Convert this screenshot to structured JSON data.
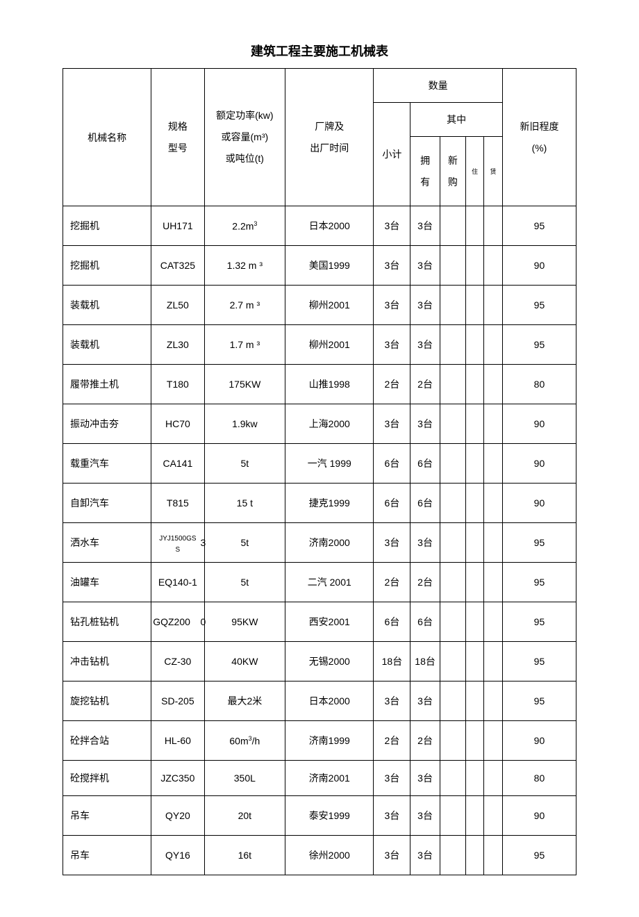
{
  "title": "建筑工程主要施工机械表",
  "headers": {
    "name": "机械名称",
    "model_line1": "规格",
    "model_line2": "型号",
    "capacity_line1": "额定功率(kw)",
    "capacity_line2": "或容量(m³)",
    "capacity_line3": "或吨位(t)",
    "brand_line1": "厂牌及",
    "brand_line2": "出厂时间",
    "quantity": "数量",
    "subtotal": "小计",
    "among": "其中",
    "own_line1": "拥",
    "own_line2": "有",
    "new_line1": "新",
    "new_line2": "购",
    "resi": "住",
    "rent": "赁",
    "condition_line1": "新旧程度",
    "condition_line2": "(%)"
  },
  "rows": [
    {
      "name": "挖掘机",
      "model": "UH171",
      "capacity": "2.2m",
      "cap_sup": "3",
      "brand": "日本2000",
      "subtotal": "3台",
      "own": "3台",
      "new": "",
      "resi": "",
      "rent": "",
      "cond": "95"
    },
    {
      "name": "挖掘机",
      "model": "CAT325",
      "capacity": "1.32 m ³",
      "cap_sup": "",
      "brand": "美国1999",
      "subtotal": "3台",
      "own": "3台",
      "new": "",
      "resi": "",
      "rent": "",
      "cond": "90"
    },
    {
      "name": "装载机",
      "model": "ZL50",
      "capacity": "2.7 m ³",
      "cap_sup": "",
      "brand": "柳州2001",
      "subtotal": "3台",
      "own": "3台",
      "new": "",
      "resi": "",
      "rent": "",
      "cond": "95"
    },
    {
      "name": "装载机",
      "model": "ZL30",
      "capacity": "1.7 m ³",
      "cap_sup": "",
      "brand": "柳州2001",
      "subtotal": "3台",
      "own": "3台",
      "new": "",
      "resi": "",
      "rent": "",
      "cond": "95"
    },
    {
      "name": "履带推土机",
      "model": "T180",
      "capacity": "175KW",
      "cap_sup": "",
      "brand": "山推1998",
      "subtotal": "2台",
      "own": "2台",
      "new": "",
      "resi": "",
      "rent": "",
      "cond": "80"
    },
    {
      "name": "振动冲击夯",
      "model": "HC70",
      "capacity": "1.9kw",
      "cap_sup": "",
      "brand": "上海2000",
      "subtotal": "3台",
      "own": "3台",
      "new": "",
      "resi": "",
      "rent": "",
      "cond": "90"
    },
    {
      "name": "载重汽车",
      "model": "CA141",
      "capacity": "5t",
      "cap_sup": "",
      "brand": "一汽 1999",
      "subtotal": "6台",
      "own": "6台",
      "new": "",
      "resi": "",
      "rent": "",
      "cond": "90"
    },
    {
      "name": "自卸汽车",
      "model": "T815",
      "capacity": "15 t",
      "cap_sup": "",
      "brand": "捷克1999",
      "subtotal": "6台",
      "own": "6台",
      "new": "",
      "resi": "",
      "rent": "",
      "cond": "90"
    },
    {
      "name": "洒水车",
      "model": "JYJ1500GSS",
      "model_extra": "3",
      "capacity": "5t",
      "cap_sup": "",
      "brand": "济南2000",
      "subtotal": "3台",
      "own": "3台",
      "new": "",
      "resi": "",
      "rent": "",
      "cond": "95"
    },
    {
      "name": "油罐车",
      "model": "EQ140-1",
      "capacity": "5t",
      "cap_sup": "",
      "brand": "二汽 2001",
      "subtotal": "2台",
      "own": "2台",
      "new": "",
      "resi": "",
      "rent": "",
      "cond": "95"
    },
    {
      "name": "钻孔桩钻机",
      "model": "GQZ2000",
      "model_extra": "0",
      "capacity": "95KW",
      "cap_sup": "",
      "brand": "西安2001",
      "subtotal": "6台",
      "own": "6台",
      "new": "",
      "resi": "",
      "rent": "",
      "cond": "95"
    },
    {
      "name": "冲击钻机",
      "model": "CZ-30",
      "capacity": "40KW",
      "cap_sup": "",
      "brand": "无锡2000",
      "subtotal": "18台",
      "own": "18台",
      "new": "",
      "resi": "",
      "rent": "",
      "cond": "95"
    },
    {
      "name": "旋挖钻机",
      "model": "SD-205",
      "capacity": "最大2米",
      "cap_sup": "",
      "brand": "日本2000",
      "subtotal": "3台",
      "own": "3台",
      "new": "",
      "resi": "",
      "rent": "",
      "cond": "95"
    },
    {
      "name": "砼拌合站",
      "model": "HL-60",
      "capacity": "60m³/h",
      "cap_sup": "",
      "brand": "济南1999",
      "subtotal": "2台",
      "own": "2台",
      "new": "",
      "resi": "",
      "rent": "",
      "cond": "90"
    },
    {
      "name": "砼搅拌机",
      "model": "JZC350",
      "capacity": "350L",
      "cap_sup": "",
      "brand": "济南2001",
      "subtotal": "3台",
      "own": "3台",
      "new": "",
      "resi": "",
      "rent": "",
      "cond": "80"
    },
    {
      "name": "吊车",
      "model": "QY20",
      "capacity": "20t",
      "cap_sup": "",
      "brand": "泰安1999",
      "subtotal": "3台",
      "own": "3台",
      "new": "",
      "resi": "",
      "rent": "",
      "cond": "90"
    },
    {
      "name": "吊车",
      "model": "QY16",
      "capacity": "16t",
      "cap_sup": "",
      "brand": "徐州2000",
      "subtotal": "3台",
      "own": "3台",
      "new": "",
      "resi": "",
      "rent": "",
      "cond": "95"
    }
  ]
}
